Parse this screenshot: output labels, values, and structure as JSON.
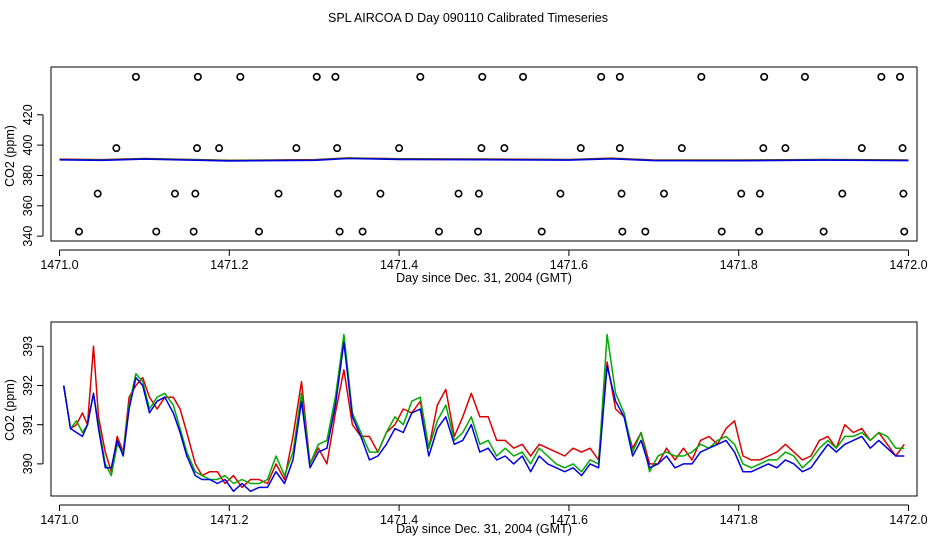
{
  "title": "SPL AIRCOA D  Day 090110  Calibrated Timeseries",
  "chart_data": [
    {
      "type": "scatter",
      "name": "upper-panel",
      "xlabel": "Day since Dec. 31, 2004 (GMT)",
      "ylabel": "CO2 (ppm)",
      "xlim": [
        1470.99,
        1472.01
      ],
      "ylim": [
        336.8,
        451.5
      ],
      "x_ticks": [
        1471.0,
        1471.2,
        1471.4,
        1471.6,
        1471.8,
        1472.0
      ],
      "x_tick_labels": [
        "1471.0",
        "1471.2",
        "1471.4",
        "1471.6",
        "1471.8",
        "1472.0"
      ],
      "y_ticks": [
        340,
        360,
        380,
        400,
        420
      ],
      "y_tick_labels": [
        "340",
        "360",
        "380",
        "400",
        "420"
      ],
      "markers": {
        "y445": [
          1471.09,
          1471.163,
          1471.213,
          1471.303,
          1471.325,
          1471.425,
          1471.498,
          1471.546,
          1471.638,
          1471.66,
          1471.756,
          1471.83,
          1471.878,
          1471.968,
          1471.99
        ],
        "y398": [
          1471.067,
          1471.162,
          1471.188,
          1471.279,
          1471.327,
          1471.4,
          1471.497,
          1471.524,
          1471.614,
          1471.66,
          1471.733,
          1471.829,
          1471.855,
          1471.945,
          1471.993
        ],
        "y368": [
          1471.045,
          1471.136,
          1471.16,
          1471.258,
          1471.328,
          1471.378,
          1471.47,
          1471.494,
          1471.59,
          1471.662,
          1471.712,
          1471.803,
          1471.825,
          1471.922,
          1471.994
        ],
        "y343": [
          1471.023,
          1471.114,
          1471.158,
          1471.235,
          1471.33,
          1471.357,
          1471.447,
          1471.493,
          1471.568,
          1471.663,
          1471.69,
          1471.78,
          1471.824,
          1471.9,
          1471.995
        ]
      },
      "baseline": {
        "x": [
          1471.0,
          1471.05,
          1471.1,
          1471.2,
          1471.3,
          1471.34,
          1471.4,
          1471.5,
          1471.6,
          1471.65,
          1471.7,
          1471.8,
          1471.9,
          1472.0
        ],
        "y": [
          390.5,
          390.2,
          391.0,
          389.8,
          390.2,
          391.4,
          390.8,
          390.6,
          390.3,
          391.2,
          390.0,
          389.9,
          390.3,
          390.0
        ],
        "colors": [
          "#dd0000",
          "#00aa00",
          "#0000dd"
        ]
      }
    },
    {
      "type": "line",
      "name": "lower-panel",
      "xlabel": "Day since Dec. 31, 2004 (GMT)",
      "ylabel": "CO2 (ppm)",
      "xlim": [
        1470.99,
        1472.01
      ],
      "ylim": [
        389.18,
        393.62
      ],
      "x_ticks": [
        1471.0,
        1471.2,
        1471.4,
        1471.6,
        1471.8,
        1472.0
      ],
      "x_tick_labels": [
        "1471.0",
        "1471.2",
        "1471.4",
        "1471.6",
        "1471.8",
        "1472.0"
      ],
      "y_ticks": [
        390,
        391,
        392,
        393
      ],
      "y_tick_labels": [
        "390",
        "391",
        "392",
        "393"
      ],
      "x": [
        1471.005,
        1471.013,
        1471.02,
        1471.027,
        1471.033,
        1471.04,
        1471.046,
        1471.054,
        1471.061,
        1471.068,
        1471.075,
        1471.082,
        1471.09,
        1471.098,
        1471.106,
        1471.115,
        1471.124,
        1471.134,
        1471.142,
        1471.15,
        1471.16,
        1471.168,
        1471.177,
        1471.186,
        1471.195,
        1471.205,
        1471.215,
        1471.225,
        1471.235,
        1471.245,
        1471.255,
        1471.265,
        1471.275,
        1471.285,
        1471.295,
        1471.305,
        1471.315,
        1471.325,
        1471.335,
        1471.345,
        1471.355,
        1471.365,
        1471.375,
        1471.385,
        1471.395,
        1471.405,
        1471.415,
        1471.425,
        1471.435,
        1471.445,
        1471.455,
        1471.465,
        1471.475,
        1471.485,
        1471.495,
        1471.505,
        1471.515,
        1471.525,
        1471.535,
        1471.545,
        1471.555,
        1471.565,
        1471.575,
        1471.585,
        1471.595,
        1471.605,
        1471.615,
        1471.625,
        1471.635,
        1471.645,
        1471.655,
        1471.665,
        1471.675,
        1471.685,
        1471.695,
        1471.705,
        1471.715,
        1471.725,
        1471.735,
        1471.745,
        1471.755,
        1471.765,
        1471.775,
        1471.785,
        1471.795,
        1471.805,
        1471.815,
        1471.825,
        1471.835,
        1471.845,
        1471.855,
        1471.865,
        1471.875,
        1471.885,
        1471.895,
        1471.905,
        1471.915,
        1471.925,
        1471.935,
        1471.945,
        1471.955,
        1471.965,
        1471.975,
        1471.985,
        1471.995
      ],
      "series": [
        {
          "name": "red",
          "color": "#dd0000",
          "values": [
            392.0,
            390.9,
            391.0,
            391.3,
            391.0,
            393.0,
            391.2,
            390.3,
            389.8,
            390.7,
            390.3,
            391.7,
            392.0,
            392.2,
            391.7,
            391.4,
            391.7,
            391.7,
            391.4,
            390.8,
            390.0,
            389.7,
            389.8,
            389.8,
            389.5,
            389.7,
            389.4,
            389.6,
            389.6,
            389.5,
            390.0,
            389.6,
            390.7,
            392.1,
            390.0,
            390.4,
            390.0,
            391.3,
            392.4,
            391.0,
            390.7,
            390.7,
            390.3,
            390.8,
            391.0,
            391.4,
            391.3,
            391.6,
            390.4,
            391.5,
            391.9,
            390.7,
            391.2,
            391.8,
            391.2,
            391.2,
            390.6,
            390.6,
            390.4,
            390.5,
            390.2,
            390.5,
            390.4,
            390.3,
            390.2,
            390.4,
            390.3,
            390.4,
            390.1,
            392.6,
            391.4,
            391.2,
            390.4,
            390.8,
            390.0,
            390.0,
            390.4,
            390.1,
            390.4,
            390.1,
            390.6,
            390.7,
            390.5,
            390.9,
            391.1,
            390.2,
            390.1,
            390.1,
            390.2,
            390.3,
            390.5,
            390.3,
            390.1,
            390.2,
            390.6,
            390.7,
            390.4,
            391.0,
            390.8,
            390.9,
            390.6,
            390.8,
            390.5,
            390.2,
            390.5
          ]
        },
        {
          "name": "green",
          "color": "#00aa00",
          "values": [
            392.0,
            390.9,
            391.1,
            390.8,
            391.0,
            391.8,
            391.0,
            390.0,
            389.7,
            390.5,
            390.3,
            391.5,
            392.3,
            392.1,
            391.4,
            391.7,
            391.8,
            391.5,
            390.9,
            390.3,
            389.8,
            389.7,
            389.6,
            389.6,
            389.7,
            389.5,
            389.6,
            389.5,
            389.5,
            389.6,
            390.2,
            389.7,
            390.3,
            391.8,
            390.0,
            390.5,
            390.6,
            391.7,
            393.3,
            391.3,
            390.8,
            390.3,
            390.3,
            390.8,
            391.2,
            391.0,
            391.6,
            391.7,
            390.4,
            391.1,
            391.5,
            390.6,
            390.8,
            391.2,
            390.5,
            390.6,
            390.2,
            390.4,
            390.2,
            390.3,
            390.0,
            390.4,
            390.2,
            390.0,
            389.9,
            390.0,
            389.8,
            390.1,
            390.0,
            393.3,
            391.8,
            391.3,
            390.3,
            390.8,
            389.8,
            390.2,
            390.3,
            390.2,
            390.2,
            390.3,
            390.5,
            390.4,
            390.6,
            390.7,
            390.5,
            390.0,
            389.9,
            390.0,
            390.1,
            390.1,
            390.3,
            390.2,
            389.9,
            390.1,
            390.4,
            390.6,
            390.4,
            390.7,
            390.7,
            390.8,
            390.6,
            390.8,
            390.7,
            390.4,
            390.4
          ]
        },
        {
          "name": "blue",
          "color": "#0000dd",
          "values": [
            392.0,
            390.9,
            390.8,
            390.7,
            391.0,
            391.8,
            390.9,
            389.9,
            389.9,
            390.6,
            390.2,
            391.4,
            392.2,
            392.0,
            391.3,
            391.6,
            391.7,
            391.3,
            390.8,
            390.2,
            389.7,
            389.6,
            389.6,
            389.5,
            389.6,
            389.3,
            389.5,
            389.3,
            389.4,
            389.4,
            389.8,
            389.5,
            390.1,
            391.6,
            389.9,
            390.3,
            390.4,
            391.5,
            393.1,
            391.2,
            390.7,
            390.1,
            390.2,
            390.5,
            390.9,
            390.8,
            391.3,
            391.4,
            390.2,
            390.9,
            391.2,
            390.5,
            390.6,
            391.0,
            390.3,
            390.4,
            390.1,
            390.2,
            390.0,
            390.2,
            389.8,
            390.2,
            390.0,
            389.9,
            389.8,
            389.9,
            389.7,
            390.0,
            389.9,
            392.5,
            391.6,
            391.2,
            390.2,
            390.6,
            389.9,
            390.0,
            390.2,
            389.9,
            390.0,
            390.0,
            390.3,
            390.4,
            390.5,
            390.6,
            390.3,
            389.8,
            389.8,
            389.9,
            390.0,
            389.9,
            390.1,
            390.0,
            389.8,
            389.9,
            390.2,
            390.5,
            390.3,
            390.5,
            390.6,
            390.7,
            390.4,
            390.6,
            390.4,
            390.2,
            390.2
          ]
        }
      ]
    }
  ]
}
